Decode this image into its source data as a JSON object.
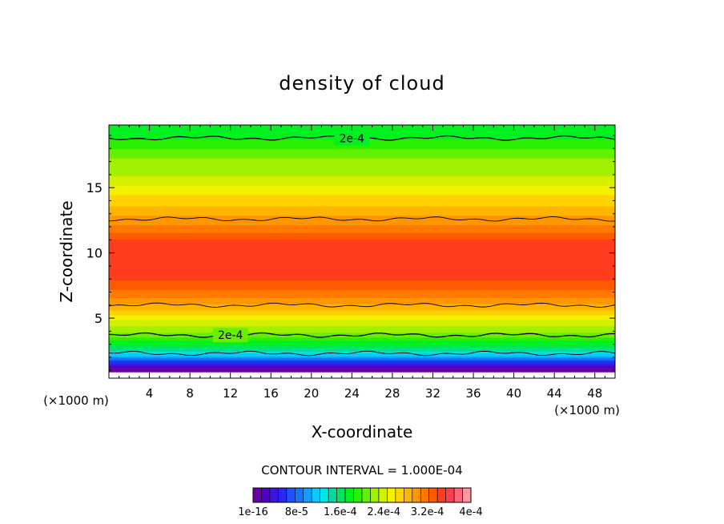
{
  "chart_data": {
    "type": "heatmap",
    "title": "density of cloud",
    "xlabel": "X-coordinate",
    "ylabel": "Z-coordinate",
    "x_unit": "(×1000 m)",
    "z_unit": "(×1000 m)",
    "xlim": [
      0,
      50
    ],
    "ylim": [
      0.4,
      19.8
    ],
    "x_ticks": [
      4,
      8,
      12,
      16,
      20,
      24,
      28,
      32,
      36,
      40,
      44,
      48
    ],
    "x_tick_labels": [
      "4",
      "8",
      "12",
      "16",
      "20",
      "24",
      "28",
      "32",
      "36",
      "40",
      "44",
      "48"
    ],
    "y_ticks": [
      5,
      10,
      15
    ],
    "y_tick_labels": [
      "5",
      "10",
      "15"
    ],
    "contour_interval_text": "CONTOUR INTERVAL = 1.000E-04",
    "contour_label": "2e-4",
    "contour_levels_z": [
      {
        "level": "2e-4",
        "z": 18.8,
        "labeled": true,
        "label_x": 24
      },
      {
        "level": "3e-4",
        "z": 12.6,
        "labeled": false
      },
      {
        "level": "3e-4",
        "z": 6.0,
        "labeled": false
      },
      {
        "level": "2e-4",
        "z": 3.7,
        "labeled": true,
        "label_x": 12
      },
      {
        "level": "1e-4",
        "z": 2.3,
        "labeled": false
      }
    ],
    "vertical_profile": {
      "z": [
        1.0,
        1.5,
        2.0,
        2.5,
        3.0,
        3.5,
        4.0,
        5.0,
        6.0,
        7.0,
        8.0,
        9.0,
        10.0,
        11.0,
        12.0,
        13.0,
        14.0,
        15.0,
        16.0,
        17.0,
        18.0,
        19.0,
        19.8
      ],
      "value": [
        0.0,
        4e-05,
        0.0001,
        0.00014,
        0.00017,
        0.000195,
        0.00022,
        0.00025,
        0.00029,
        0.00032,
        0.00034,
        0.00035,
        0.00035,
        0.00034,
        0.00031,
        0.00029,
        0.00027,
        0.00025,
        0.00023,
        0.00022,
        0.0002,
        0.00018,
        0.00017
      ]
    },
    "colorbar": {
      "min": 0,
      "max": 0.0004,
      "colors": [
        "#6a00a8",
        "#5000c8",
        "#3c14dc",
        "#2828f0",
        "#2050ff",
        "#1478ff",
        "#10a0ff",
        "#10c8ff",
        "#00e6e6",
        "#00dca0",
        "#00e65a",
        "#00f020",
        "#28f000",
        "#64f000",
        "#a0f000",
        "#d2f000",
        "#f5f000",
        "#ffd200",
        "#ffb400",
        "#ff9600",
        "#ff7800",
        "#ff5a00",
        "#ff3c1e",
        "#ff3c50",
        "#ff6478",
        "#ff96a0"
      ],
      "tick_labels": [
        "1e-16",
        "8e-5",
        "1.6e-4",
        "2.4e-4",
        "3.2e-4",
        "4e-4"
      ]
    }
  }
}
